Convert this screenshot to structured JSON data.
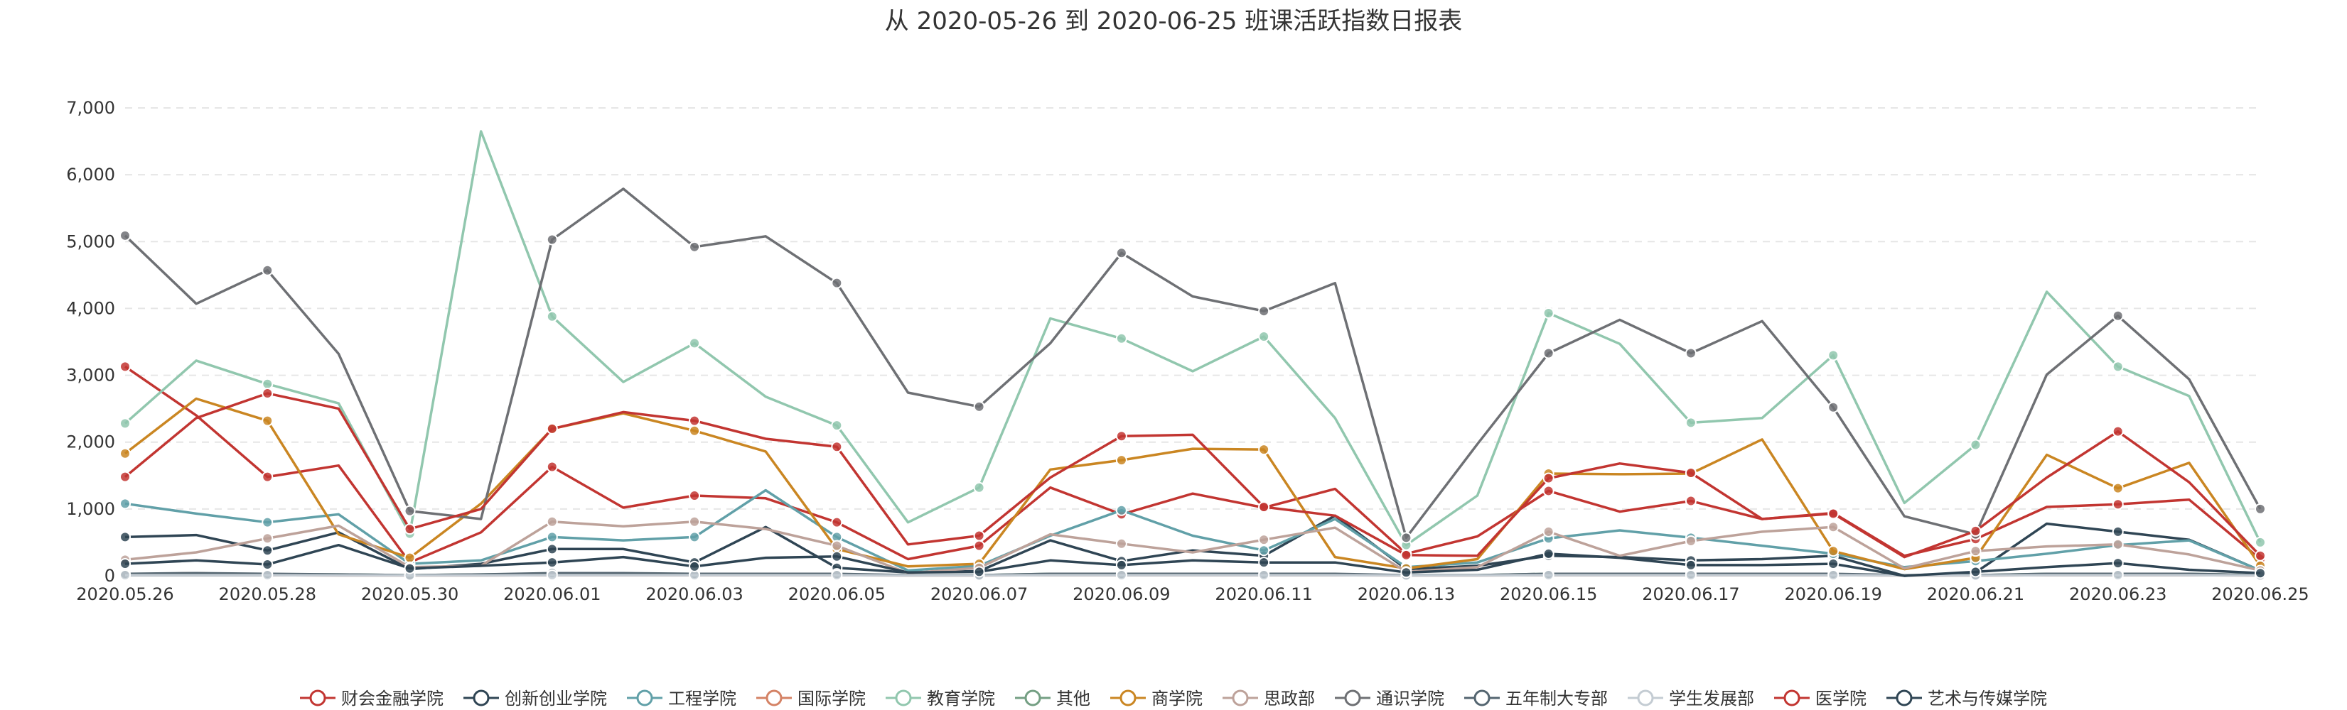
{
  "chart_data": {
    "type": "line",
    "title": "从 2020-05-26 到 2020-06-25 班课活跃指数日报表",
    "xlabel": "",
    "ylabel": "",
    "ylim": [
      0,
      7000
    ],
    "yticks": [
      0,
      1000,
      2000,
      3000,
      4000,
      5000,
      6000,
      7000
    ],
    "ytick_labels": [
      "0",
      "1,000",
      "2,000",
      "3,000",
      "4,000",
      "5,000",
      "6,000",
      "7,000"
    ],
    "grid": true,
    "legend_position": "bottom",
    "categories": [
      "2020.05.26",
      "2020.05.27",
      "2020.05.28",
      "2020.05.29",
      "2020.05.30",
      "2020.05.31",
      "2020.06.01",
      "2020.06.02",
      "2020.06.03",
      "2020.06.04",
      "2020.06.05",
      "2020.06.06",
      "2020.06.07",
      "2020.06.08",
      "2020.06.09",
      "2020.06.10",
      "2020.06.11",
      "2020.06.12",
      "2020.06.13",
      "2020.06.14",
      "2020.06.15",
      "2020.06.16",
      "2020.06.17",
      "2020.06.18",
      "2020.06.19",
      "2020.06.20",
      "2020.06.21",
      "2020.06.22",
      "2020.06.23",
      "2020.06.24",
      "2020.06.25"
    ],
    "xtick_labels": [
      "2020.05.26",
      "2020.05.28",
      "2020.05.30",
      "2020.06.01",
      "2020.06.03",
      "2020.06.05",
      "2020.06.07",
      "2020.06.09",
      "2020.06.11",
      "2020.06.13",
      "2020.06.15",
      "2020.06.17",
      "2020.06.19",
      "2020.06.21",
      "2020.06.23",
      "2020.06.25"
    ],
    "series": [
      {
        "name": "财会金融学院",
        "color": "#c23531",
        "values": [
          3130,
          2400,
          1480,
          1650,
          200,
          650,
          1630,
          1020,
          1200,
          1160,
          800,
          250,
          450,
          1320,
          920,
          1230,
          1020,
          1300,
          330,
          590,
          1270,
          960,
          1120,
          850,
          940,
          300,
          550,
          1030,
          1070,
          1140,
          250
        ]
      },
      {
        "name": "创新创业学院",
        "color": "#2f4554",
        "values": [
          580,
          610,
          380,
          650,
          100,
          180,
          400,
          400,
          200,
          730,
          120,
          50,
          70,
          530,
          220,
          380,
          300,
          900,
          100,
          150,
          300,
          280,
          230,
          250,
          300,
          0,
          50,
          780,
          660,
          540,
          80
        ]
      },
      {
        "name": "工程学院",
        "color": "#61a0a8",
        "values": [
          1080,
          930,
          800,
          920,
          180,
          230,
          580,
          530,
          580,
          1280,
          580,
          80,
          150,
          600,
          980,
          600,
          380,
          850,
          130,
          200,
          560,
          680,
          570,
          450,
          330,
          130,
          220,
          330,
          460,
          530,
          80
        ]
      },
      {
        "name": "国际学院",
        "color": "#d48265",
        "values": [
          20,
          40,
          10,
          5,
          5,
          5,
          10,
          10,
          10,
          10,
          10,
          5,
          5,
          10,
          10,
          10,
          10,
          10,
          5,
          5,
          10,
          10,
          10,
          10,
          10,
          5,
          5,
          10,
          10,
          10,
          5
        ]
      },
      {
        "name": "教育学院",
        "color": "#91c7ae",
        "values": [
          2280,
          3220,
          2870,
          2580,
          630,
          6650,
          3880,
          2900,
          3480,
          2680,
          2250,
          800,
          1320,
          3850,
          3550,
          3060,
          3580,
          2360,
          460,
          1200,
          3930,
          3470,
          2290,
          2360,
          3300,
          1090,
          1960,
          4250,
          3130,
          2690,
          500
        ]
      },
      {
        "name": "其他",
        "color": "#749f83",
        "values": [
          30,
          30,
          20,
          20,
          10,
          20,
          30,
          30,
          30,
          30,
          20,
          10,
          10,
          30,
          30,
          30,
          30,
          20,
          10,
          10,
          30,
          30,
          30,
          30,
          20,
          10,
          10,
          30,
          30,
          30,
          10
        ]
      },
      {
        "name": "商学院",
        "color": "#ca8622",
        "values": [
          1830,
          2650,
          2320,
          620,
          270,
          1080,
          2200,
          2430,
          2170,
          1860,
          400,
          140,
          180,
          1590,
          1730,
          1900,
          1890,
          280,
          110,
          250,
          1530,
          1520,
          1530,
          2040,
          370,
          100,
          270,
          1810,
          1310,
          1690,
          150
        ]
      },
      {
        "name": "思政部",
        "color": "#bda29a",
        "values": [
          240,
          350,
          560,
          750,
          130,
          150,
          810,
          740,
          810,
          700,
          450,
          40,
          120,
          620,
          480,
          350,
          540,
          720,
          60,
          130,
          660,
          300,
          520,
          660,
          730,
          110,
          370,
          440,
          470,
          320,
          80
        ]
      },
      {
        "name": "通识学院",
        "color": "#6e7074",
        "values": [
          5090,
          4070,
          4570,
          3320,
          970,
          850,
          5030,
          5790,
          4920,
          5080,
          4380,
          2740,
          2530,
          3480,
          4830,
          4180,
          3960,
          4380,
          570,
          1970,
          3330,
          3830,
          3330,
          3810,
          2520,
          890,
          620,
          3010,
          3890,
          2940,
          1000
        ]
      },
      {
        "name": "五年制大专部",
        "color": "#546570",
        "values": [
          30,
          40,
          30,
          20,
          10,
          20,
          40,
          40,
          30,
          30,
          30,
          10,
          10,
          30,
          30,
          30,
          30,
          30,
          10,
          10,
          30,
          30,
          30,
          30,
          30,
          10,
          10,
          30,
          30,
          30,
          10
        ]
      },
      {
        "name": "学生发展部",
        "color": "#c4ccd3",
        "values": [
          10,
          10,
          10,
          5,
          5,
          5,
          10,
          10,
          10,
          10,
          10,
          5,
          5,
          10,
          10,
          10,
          10,
          10,
          5,
          5,
          10,
          10,
          10,
          10,
          10,
          5,
          5,
          10,
          10,
          10,
          5
        ]
      },
      {
        "name": "医学院",
        "color": "#c23531",
        "values": [
          1480,
          2360,
          2730,
          2500,
          700,
          1000,
          2200,
          2450,
          2320,
          2050,
          1930,
          470,
          600,
          1470,
          2090,
          2110,
          1030,
          900,
          310,
          300,
          1460,
          1680,
          1540,
          850,
          930,
          280,
          670,
          1470,
          2160,
          1400,
          300
        ]
      },
      {
        "name": "艺术与传媒学院",
        "color": "#2f4554",
        "values": [
          180,
          230,
          170,
          460,
          110,
          150,
          200,
          280,
          140,
          270,
          290,
          50,
          60,
          230,
          160,
          230,
          200,
          200,
          50,
          90,
          330,
          270,
          160,
          160,
          180,
          0,
          60,
          130,
          190,
          90,
          40
        ]
      }
    ]
  }
}
